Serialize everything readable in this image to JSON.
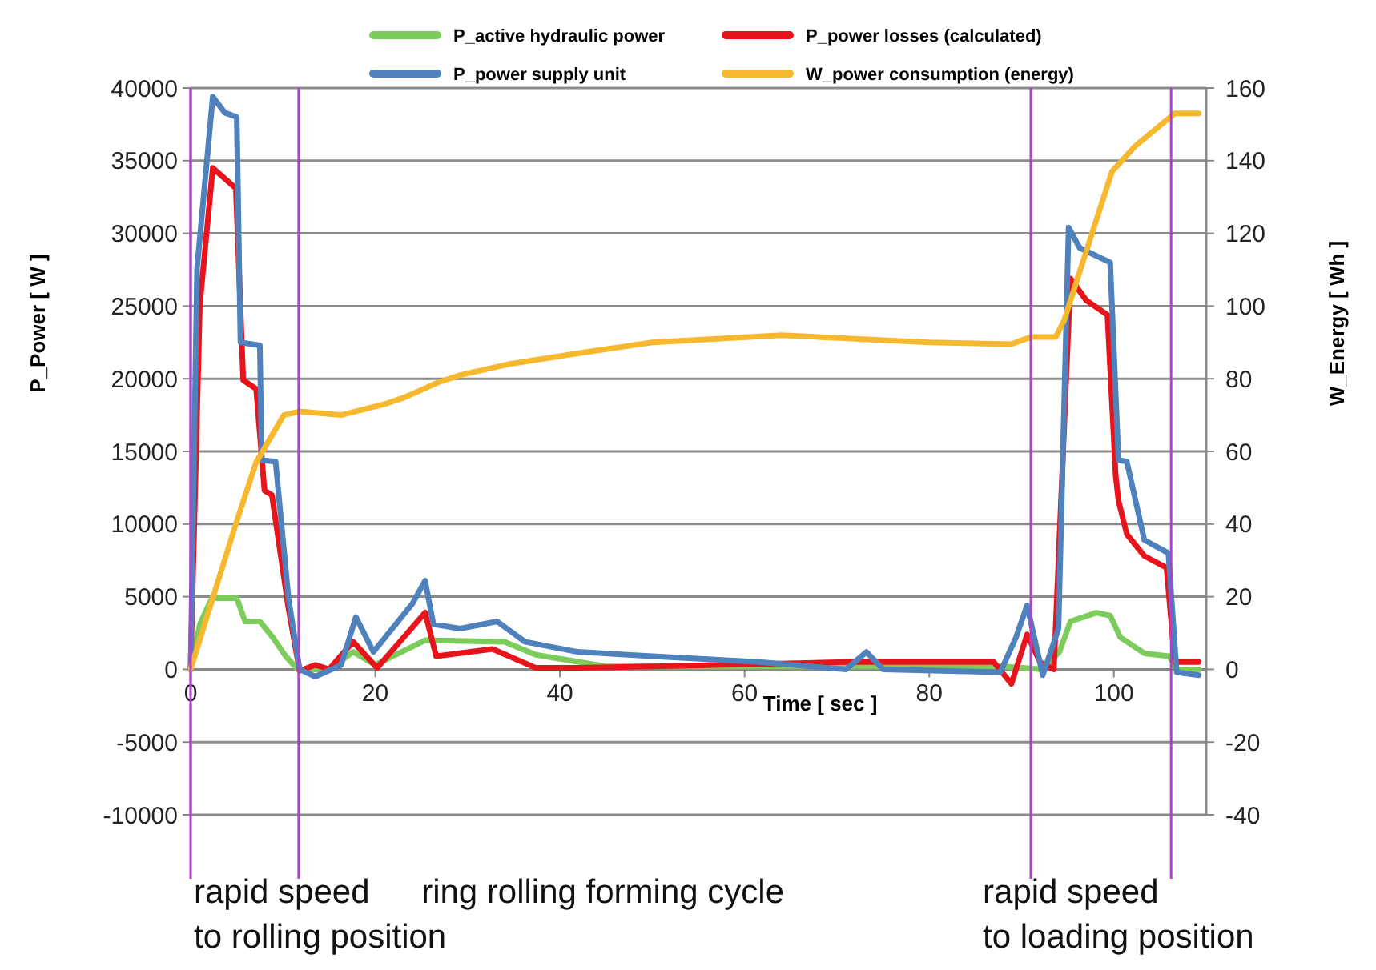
{
  "chart_data": {
    "type": "line",
    "xlabel": "Time [ sec ]",
    "ylabel": "P_Power [ W ]",
    "y2label": "W_Energy [ Wh ]",
    "xlim": [
      0,
      110
    ],
    "xticks": [
      0,
      20,
      40,
      60,
      80,
      100
    ],
    "ylim": [
      -10000,
      40000
    ],
    "yticks": [
      -10000,
      -5000,
      0,
      5000,
      10000,
      15000,
      20000,
      25000,
      30000,
      35000,
      40000
    ],
    "y2lim": [
      -40,
      160
    ],
    "y2ticks": [
      -40,
      -20,
      0,
      20,
      40,
      60,
      80,
      100,
      120,
      140,
      160
    ],
    "grid": "y",
    "legend": "top",
    "line_style": "solid",
    "marker": "none",
    "series": [
      {
        "name": "P_active hydraulic power",
        "color": "#7ccc5c",
        "x": [
          0,
          1,
          2.3,
          5,
          5.9,
          7.5,
          8.9,
          10.3,
          11.6,
          15,
          17.6,
          20,
          25.4,
          34,
          37.4,
          45,
          88,
          92.3,
          94.1,
          95.3,
          98.1,
          99.6,
          100.7,
          103.3,
          106,
          106.8,
          109.2
        ],
        "values": [
          0,
          3100,
          4900,
          4900,
          3300,
          3300,
          2200,
          900,
          0,
          0,
          1200,
          300,
          2000,
          1900,
          1000,
          200,
          200,
          0,
          1200,
          3300,
          3900,
          3700,
          2200,
          1100,
          900,
          0,
          0
        ]
      },
      {
        "name": "P_power losses (calculated)",
        "color": "#e8141c",
        "x": [
          0,
          1,
          2.4,
          4.9,
          5.7,
          7.1,
          8,
          8.8,
          10.6,
          11.8,
          13.5,
          15,
          17.6,
          20.2,
          25.4,
          26.6,
          32.7,
          37.4,
          41.9,
          50,
          71,
          87,
          88.9,
          90.6,
          92,
          93.5,
          95.3,
          97,
          99.3,
          100.2,
          100.5,
          101.4,
          103.3,
          105.7,
          106.6,
          109.2
        ],
        "values": [
          0,
          25100,
          34500,
          33100,
          19900,
          19300,
          12300,
          12000,
          4200,
          -100,
          300,
          0,
          1900,
          100,
          3900,
          900,
          1400,
          100,
          100,
          200,
          500,
          500,
          -1000,
          2400,
          500,
          0,
          26900,
          25400,
          24400,
          13300,
          11600,
          9300,
          7800,
          7000,
          500,
          500
        ]
      },
      {
        "name": "P_power supply unit",
        "color": "#4f81bd",
        "x": [
          0,
          0.7,
          2.4,
          3.7,
          5,
          5.4,
          7.5,
          7.7,
          9.2,
          10.6,
          11.8,
          13.5,
          16.3,
          17.9,
          19.8,
          24,
          25.4,
          26.3,
          29.2,
          33.2,
          36.2,
          41.9,
          50,
          61.6,
          71,
          73.2,
          75,
          87.7,
          89.4,
          90.6,
          92.3,
          94,
          95.1,
          96.3,
          99.6,
          100.5,
          101.4,
          103.3,
          105.9,
          106.8,
          109.2
        ],
        "values": [
          0,
          27600,
          39400,
          38300,
          38000,
          22500,
          22300,
          14400,
          14300,
          4900,
          0,
          -500,
          300,
          3600,
          1200,
          4500,
          6100,
          3100,
          2800,
          3300,
          1900,
          1200,
          900,
          500,
          0,
          1200,
          0,
          -200,
          2200,
          4400,
          -400,
          2800,
          30400,
          29000,
          28000,
          14400,
          14300,
          8900,
          8000,
          -200,
          -400
        ]
      },
      {
        "name": "W_power consumption (energy)",
        "color": "#f5b82e",
        "axis": "y2",
        "x": [
          0,
          4.9,
          7.1,
          10.1,
          11.8,
          16.3,
          21,
          23.3,
          26.8,
          29.2,
          34.4,
          41.9,
          50,
          64,
          80,
          88.9,
          91,
          93.7,
          94.6,
          97,
          99.8,
          102.3,
          106.6,
          109.2
        ],
        "values": [
          0,
          40,
          57,
          70,
          71,
          70,
          73,
          75,
          79,
          81,
          84,
          87,
          90,
          92,
          90,
          89.5,
          91.5,
          91.5,
          96,
          115,
          137,
          144,
          153,
          153
        ]
      }
    ],
    "ref_lines": [
      {
        "axis": "x",
        "value": 0,
        "color": "#b040d0"
      },
      {
        "axis": "x",
        "value": 11.7,
        "color": "#b040d0"
      },
      {
        "axis": "x",
        "value": 91,
        "color": "#b040d0"
      },
      {
        "axis": "x",
        "value": 106.2,
        "color": "#b040d0"
      }
    ],
    "annotations": [
      "rapid speed\nto rolling position",
      "ring rolling forming cycle",
      "rapid speed\nto loading position"
    ]
  }
}
